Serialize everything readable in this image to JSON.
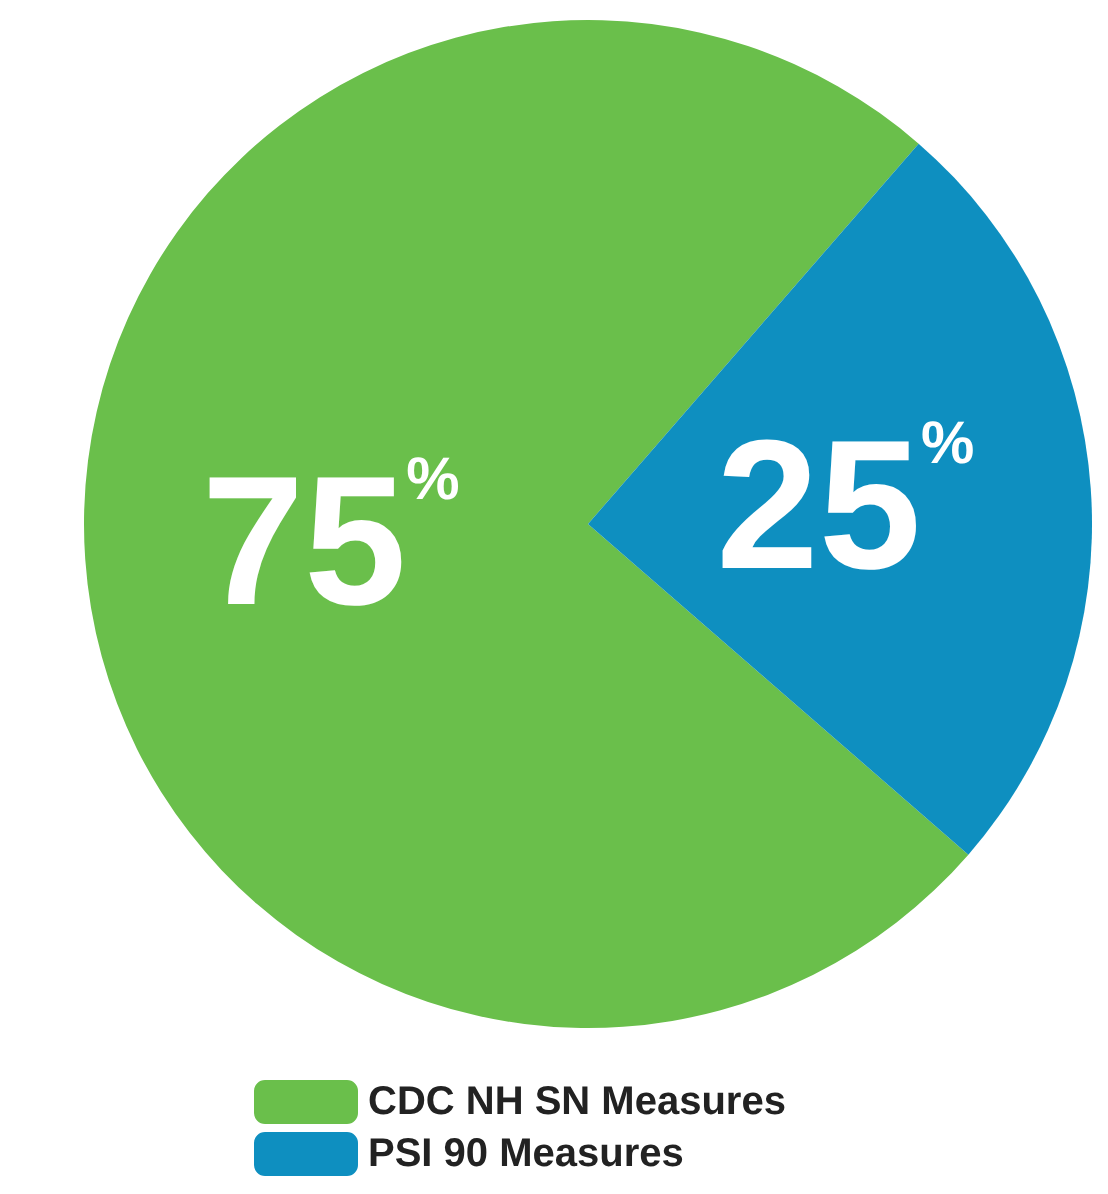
{
  "chart_data": {
    "type": "pie",
    "categories": [
      "CDC NH SN Measures",
      "PSI 90 Measures"
    ],
    "values": [
      75,
      25
    ],
    "colors": [
      "#6abf4b",
      "#0e8fc0"
    ],
    "value_labels": [
      "75%",
      "25%"
    ],
    "legend": "bottom"
  }
}
